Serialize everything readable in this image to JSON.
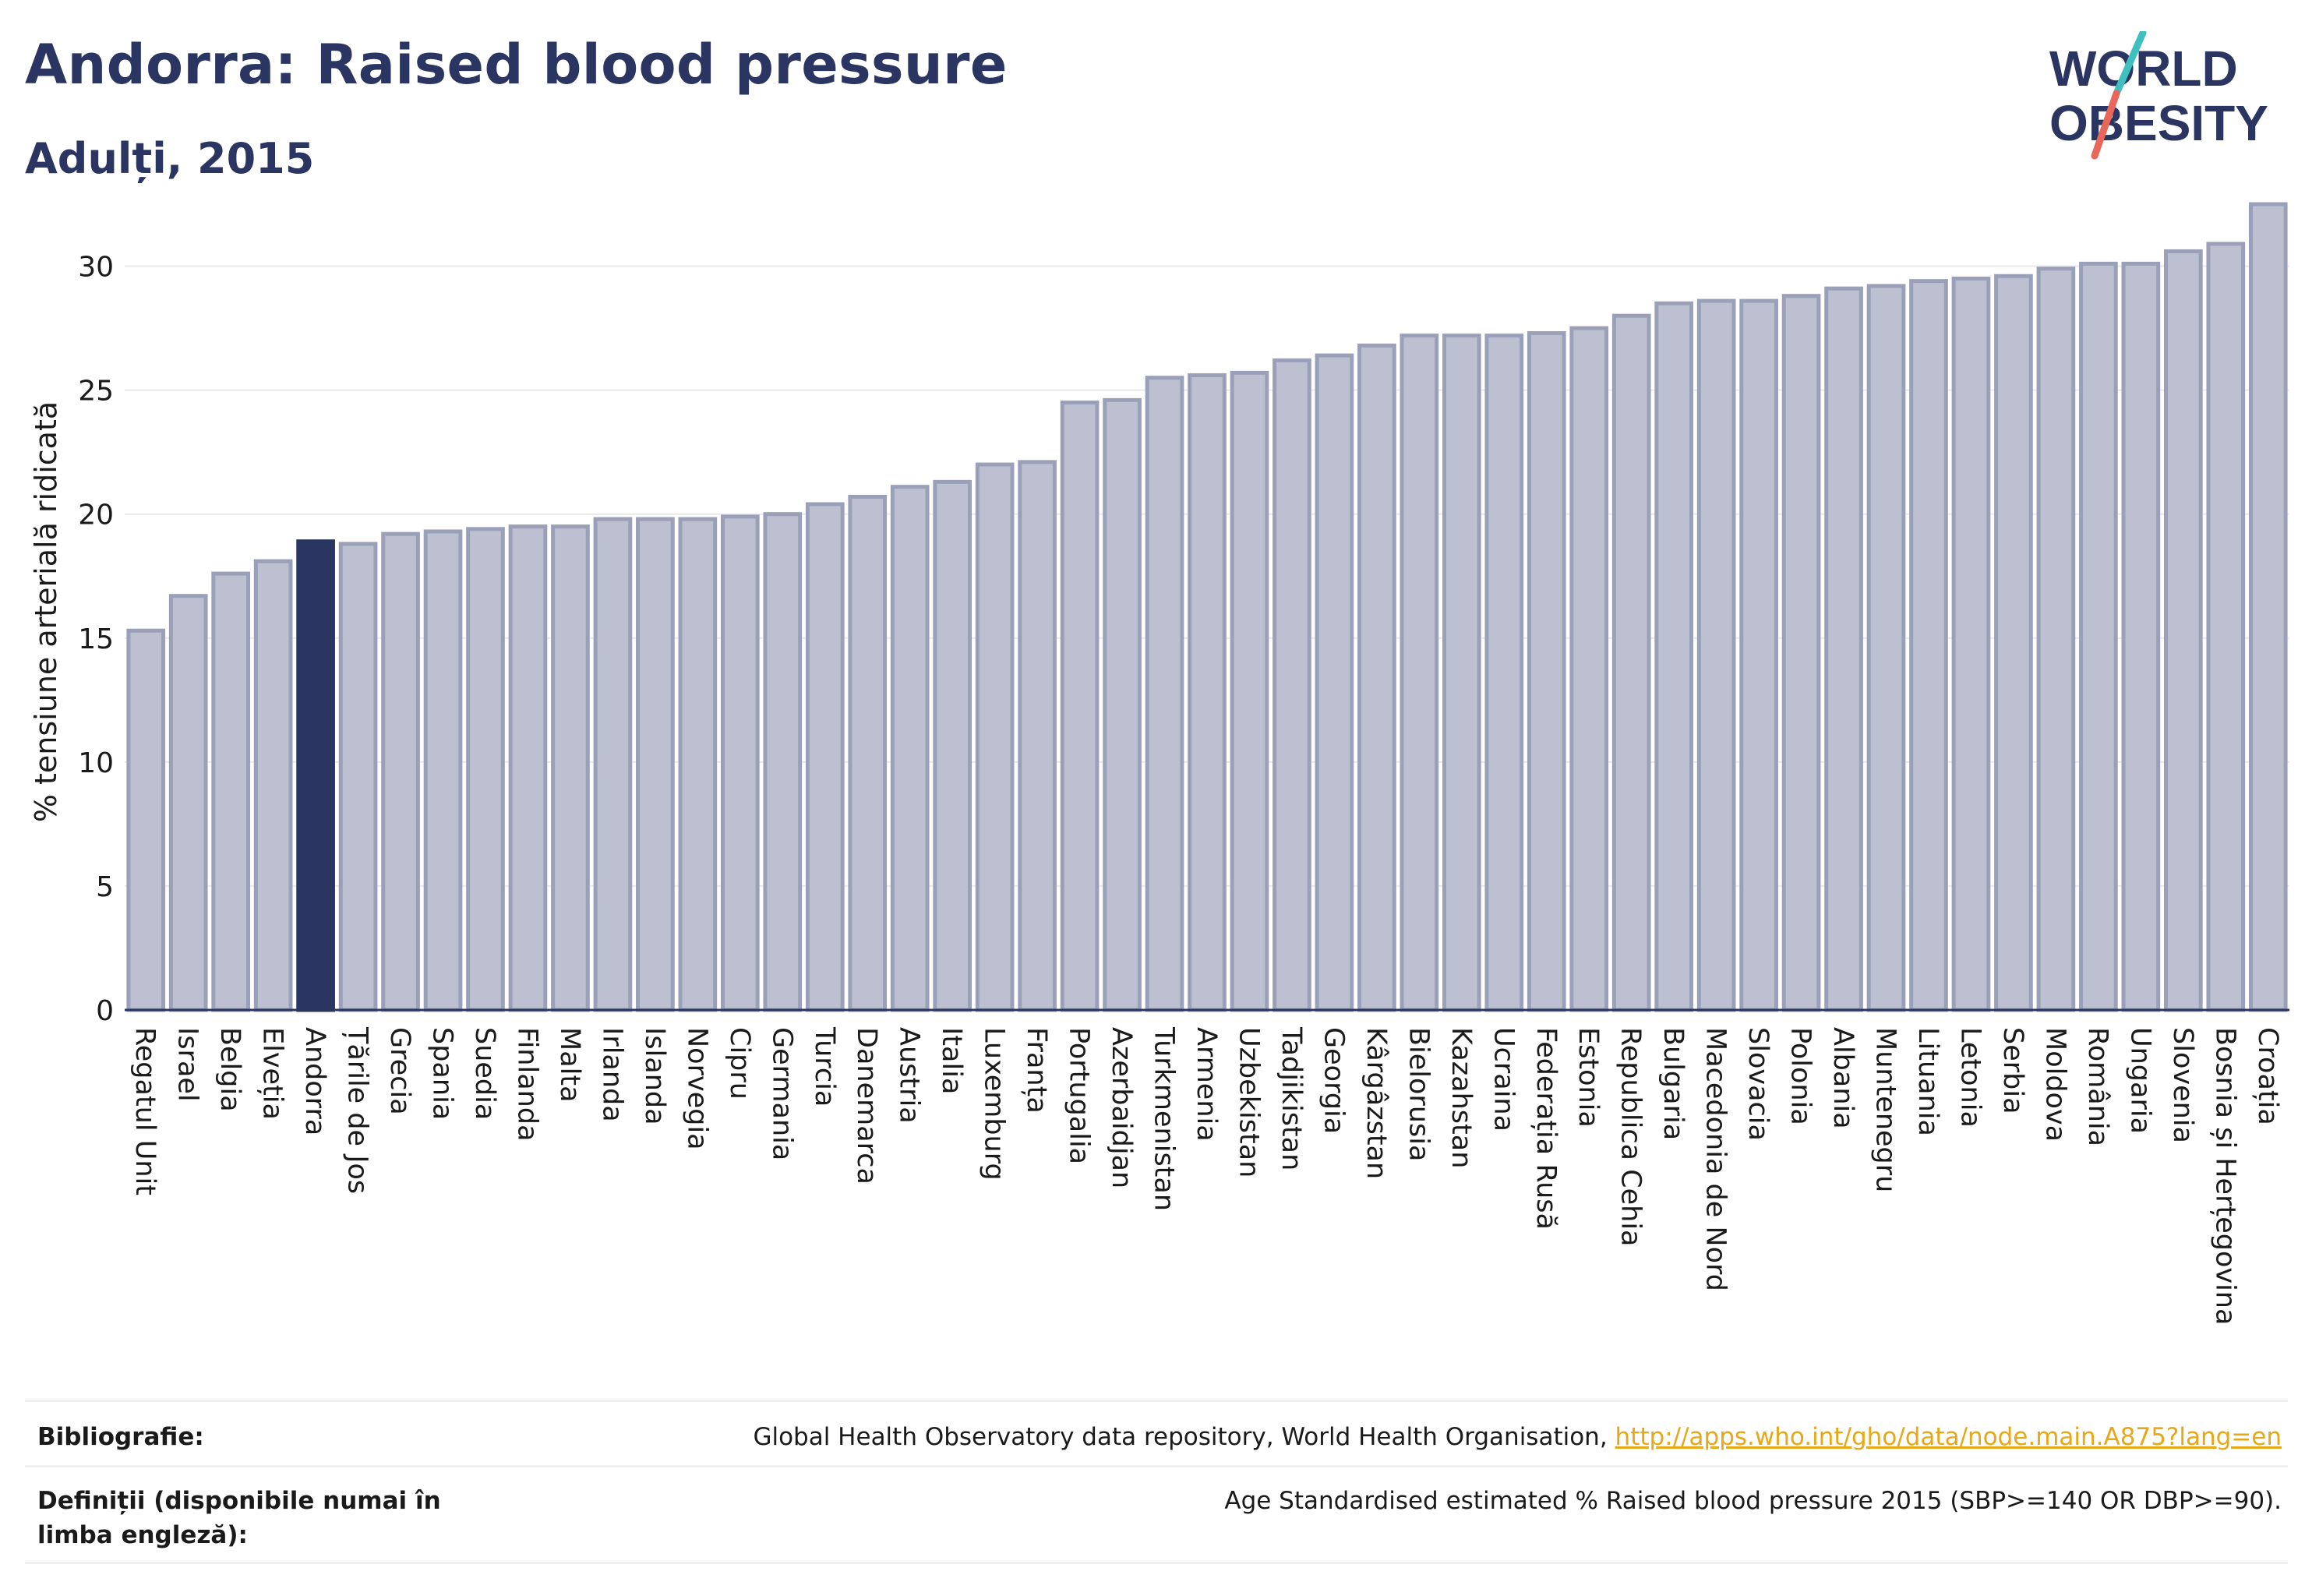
{
  "header": {
    "title": "Andorra: Raised blood pressure",
    "subtitle": "Adulți, 2015",
    "logo_line1": "WORLD",
    "logo_line2": "OBESITY"
  },
  "colors": {
    "highlight": "#2a3561",
    "bar_fill": "#bcc0d0",
    "bar_stroke": "#9aa0b8",
    "text": "#2a3561",
    "logo_teal": "#3fbfbf",
    "logo_red": "#e8665a",
    "link": "#e6a817"
  },
  "chart_data": {
    "type": "bar",
    "ylabel": "% tensiune arterială ridicată",
    "ylim": [
      0,
      32.5
    ],
    "yticks": [
      0,
      5,
      10,
      15,
      20,
      25,
      30
    ],
    "grid": true,
    "highlight": "Andorra",
    "categories": [
      "Regatul Unit",
      "Israel",
      "Belgia",
      "Elveția",
      "Andorra",
      "Țările de Jos",
      "Grecia",
      "Spania",
      "Suedia",
      "Finlanda",
      "Malta",
      "Irlanda",
      "Islanda",
      "Norvegia",
      "Cipru",
      "Germania",
      "Turcia",
      "Danemarca",
      "Austria",
      "Italia",
      "Luxemburg",
      "Franța",
      "Portugalia",
      "Azerbaidjan",
      "Turkmenistan",
      "Armenia",
      "Uzbekistan",
      "Tadjikistan",
      "Georgia",
      "Kârgâzstan",
      "Bielorusia",
      "Kazahstan",
      "Ucraina",
      "Federația Rusă",
      "Estonia",
      "Republica Cehia",
      "Bulgaria",
      "Macedonia de Nord",
      "Slovacia",
      "Polonia",
      "Albania",
      "Muntenegru",
      "Lituania",
      "Letonia",
      "Serbia",
      "Moldova",
      "România",
      "Ungaria",
      "Slovenia",
      "Bosnia și Herțegovina",
      "Croația"
    ],
    "values": [
      15.3,
      16.7,
      17.6,
      18.1,
      18.9,
      18.8,
      19.2,
      19.3,
      19.4,
      19.5,
      19.5,
      19.8,
      19.8,
      19.8,
      19.9,
      20.0,
      20.4,
      20.7,
      21.1,
      21.3,
      22.0,
      22.1,
      24.5,
      24.6,
      25.5,
      25.6,
      25.7,
      26.2,
      26.4,
      26.8,
      27.2,
      27.2,
      27.2,
      27.3,
      27.5,
      28.0,
      28.5,
      28.6,
      28.6,
      28.8,
      29.1,
      29.2,
      29.4,
      29.5,
      29.6,
      29.9,
      30.1,
      30.1,
      30.6,
      30.9,
      32.5
    ]
  },
  "footer": {
    "bibliography_label": "Bibliografie:",
    "bibliography_text": "Global Health Observatory data repository, World Health Organisation, ",
    "bibliography_link": "http://apps.who.int/gho/data/node.main.A875?lang=en",
    "definitions_label": "Definiții (disponibile numai în limba engleză):",
    "definitions_text": "Age Standardised estimated % Raised blood pressure 2015 (SBP>=140 OR DBP>=90)."
  }
}
